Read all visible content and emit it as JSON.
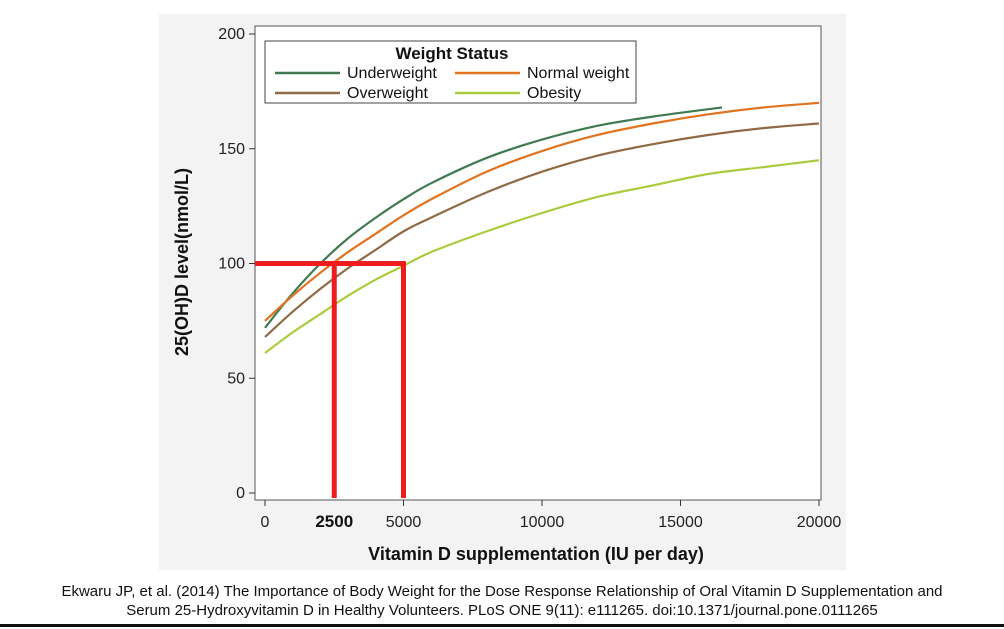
{
  "chart_data": {
    "type": "line",
    "title": "",
    "xlabel": "Vitamin D supplementation (IU per day)",
    "ylabel": "25(OH)D level(nmol/L)",
    "xlim": [
      0,
      20000
    ],
    "ylim": [
      0,
      200
    ],
    "xticks": [
      0,
      5000,
      10000,
      15000,
      20000
    ],
    "yticks": [
      0,
      50,
      100,
      150,
      200
    ],
    "grid": false,
    "legend": {
      "title": "Weight Status",
      "placement": "top-left, two columns"
    },
    "series": [
      {
        "name": "Underweight",
        "color": "#3f7a52",
        "x": [
          0,
          1000,
          2000,
          3000,
          4000,
          5000,
          6000,
          8000,
          10000,
          12000,
          14000,
          16500
        ],
        "y": [
          72,
          87,
          100,
          111,
          120,
          128,
          135,
          146,
          154,
          160,
          164,
          168
        ]
      },
      {
        "name": "Normal weight",
        "color": "#e0731f",
        "x": [
          0,
          1000,
          2000,
          3000,
          4000,
          5000,
          6000,
          8000,
          10000,
          12000,
          14000,
          16000,
          18000,
          20000
        ],
        "y": [
          75,
          86,
          96,
          105,
          113,
          121,
          128,
          140,
          149,
          156,
          161,
          165,
          168,
          170
        ]
      },
      {
        "name": "Overweight",
        "color": "#8f6a45",
        "x": [
          0,
          1000,
          2000,
          3000,
          4000,
          5000,
          6000,
          8000,
          10000,
          12000,
          14000,
          16000,
          18000,
          20000
        ],
        "y": [
          68,
          79,
          89,
          98,
          106,
          114,
          120,
          131,
          140,
          147,
          152,
          156,
          159,
          161
        ]
      },
      {
        "name": "Obesity",
        "color": "#a9cc3f",
        "x": [
          0,
          1000,
          2000,
          3000,
          4000,
          5000,
          6000,
          8000,
          10000,
          12000,
          14000,
          16000,
          18000,
          20000
        ],
        "y": [
          61,
          70,
          78,
          86,
          93,
          99,
          105,
          114,
          122,
          129,
          134,
          139,
          142,
          145
        ]
      }
    ],
    "annotations": {
      "color": "#ee1c1c",
      "horizontal_line_y": 100,
      "horizontal_line_x_range": [
        0,
        5000
      ],
      "vertical_lines_x": [
        2500,
        5000
      ],
      "labels": [
        {
          "text": "2500",
          "x": 2500
        }
      ]
    }
  },
  "citation": {
    "line1": "Ekwaru JP, et al. (2014) The Importance of Body Weight for the Dose Response Relationship of Oral Vitamin D Supplementation and",
    "line2": "Serum 25-Hydroxyvitamin D in Healthy Volunteers. PLoS ONE 9(11): e111265. doi:10.1371/journal.pone.0111265"
  }
}
